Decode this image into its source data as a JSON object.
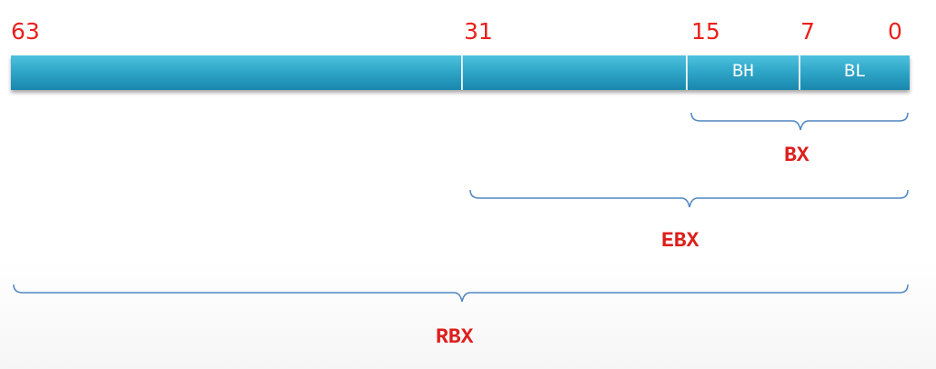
{
  "bit_positions": {
    "b63": "63",
    "b31": "31",
    "b15": "15",
    "b7": "7",
    "b0": "0"
  },
  "register": {
    "segments": {
      "upper": "",
      "middle": "",
      "bh": "BH",
      "bl": "BL"
    }
  },
  "labels": {
    "bx": "BX",
    "ebx": "EBX",
    "rbx": "RBX"
  },
  "colors": {
    "bit_numbers": "#e8201c",
    "register_labels": "#dd1f1c",
    "bar": "#30a7c9",
    "braces": "#4f86c2"
  }
}
